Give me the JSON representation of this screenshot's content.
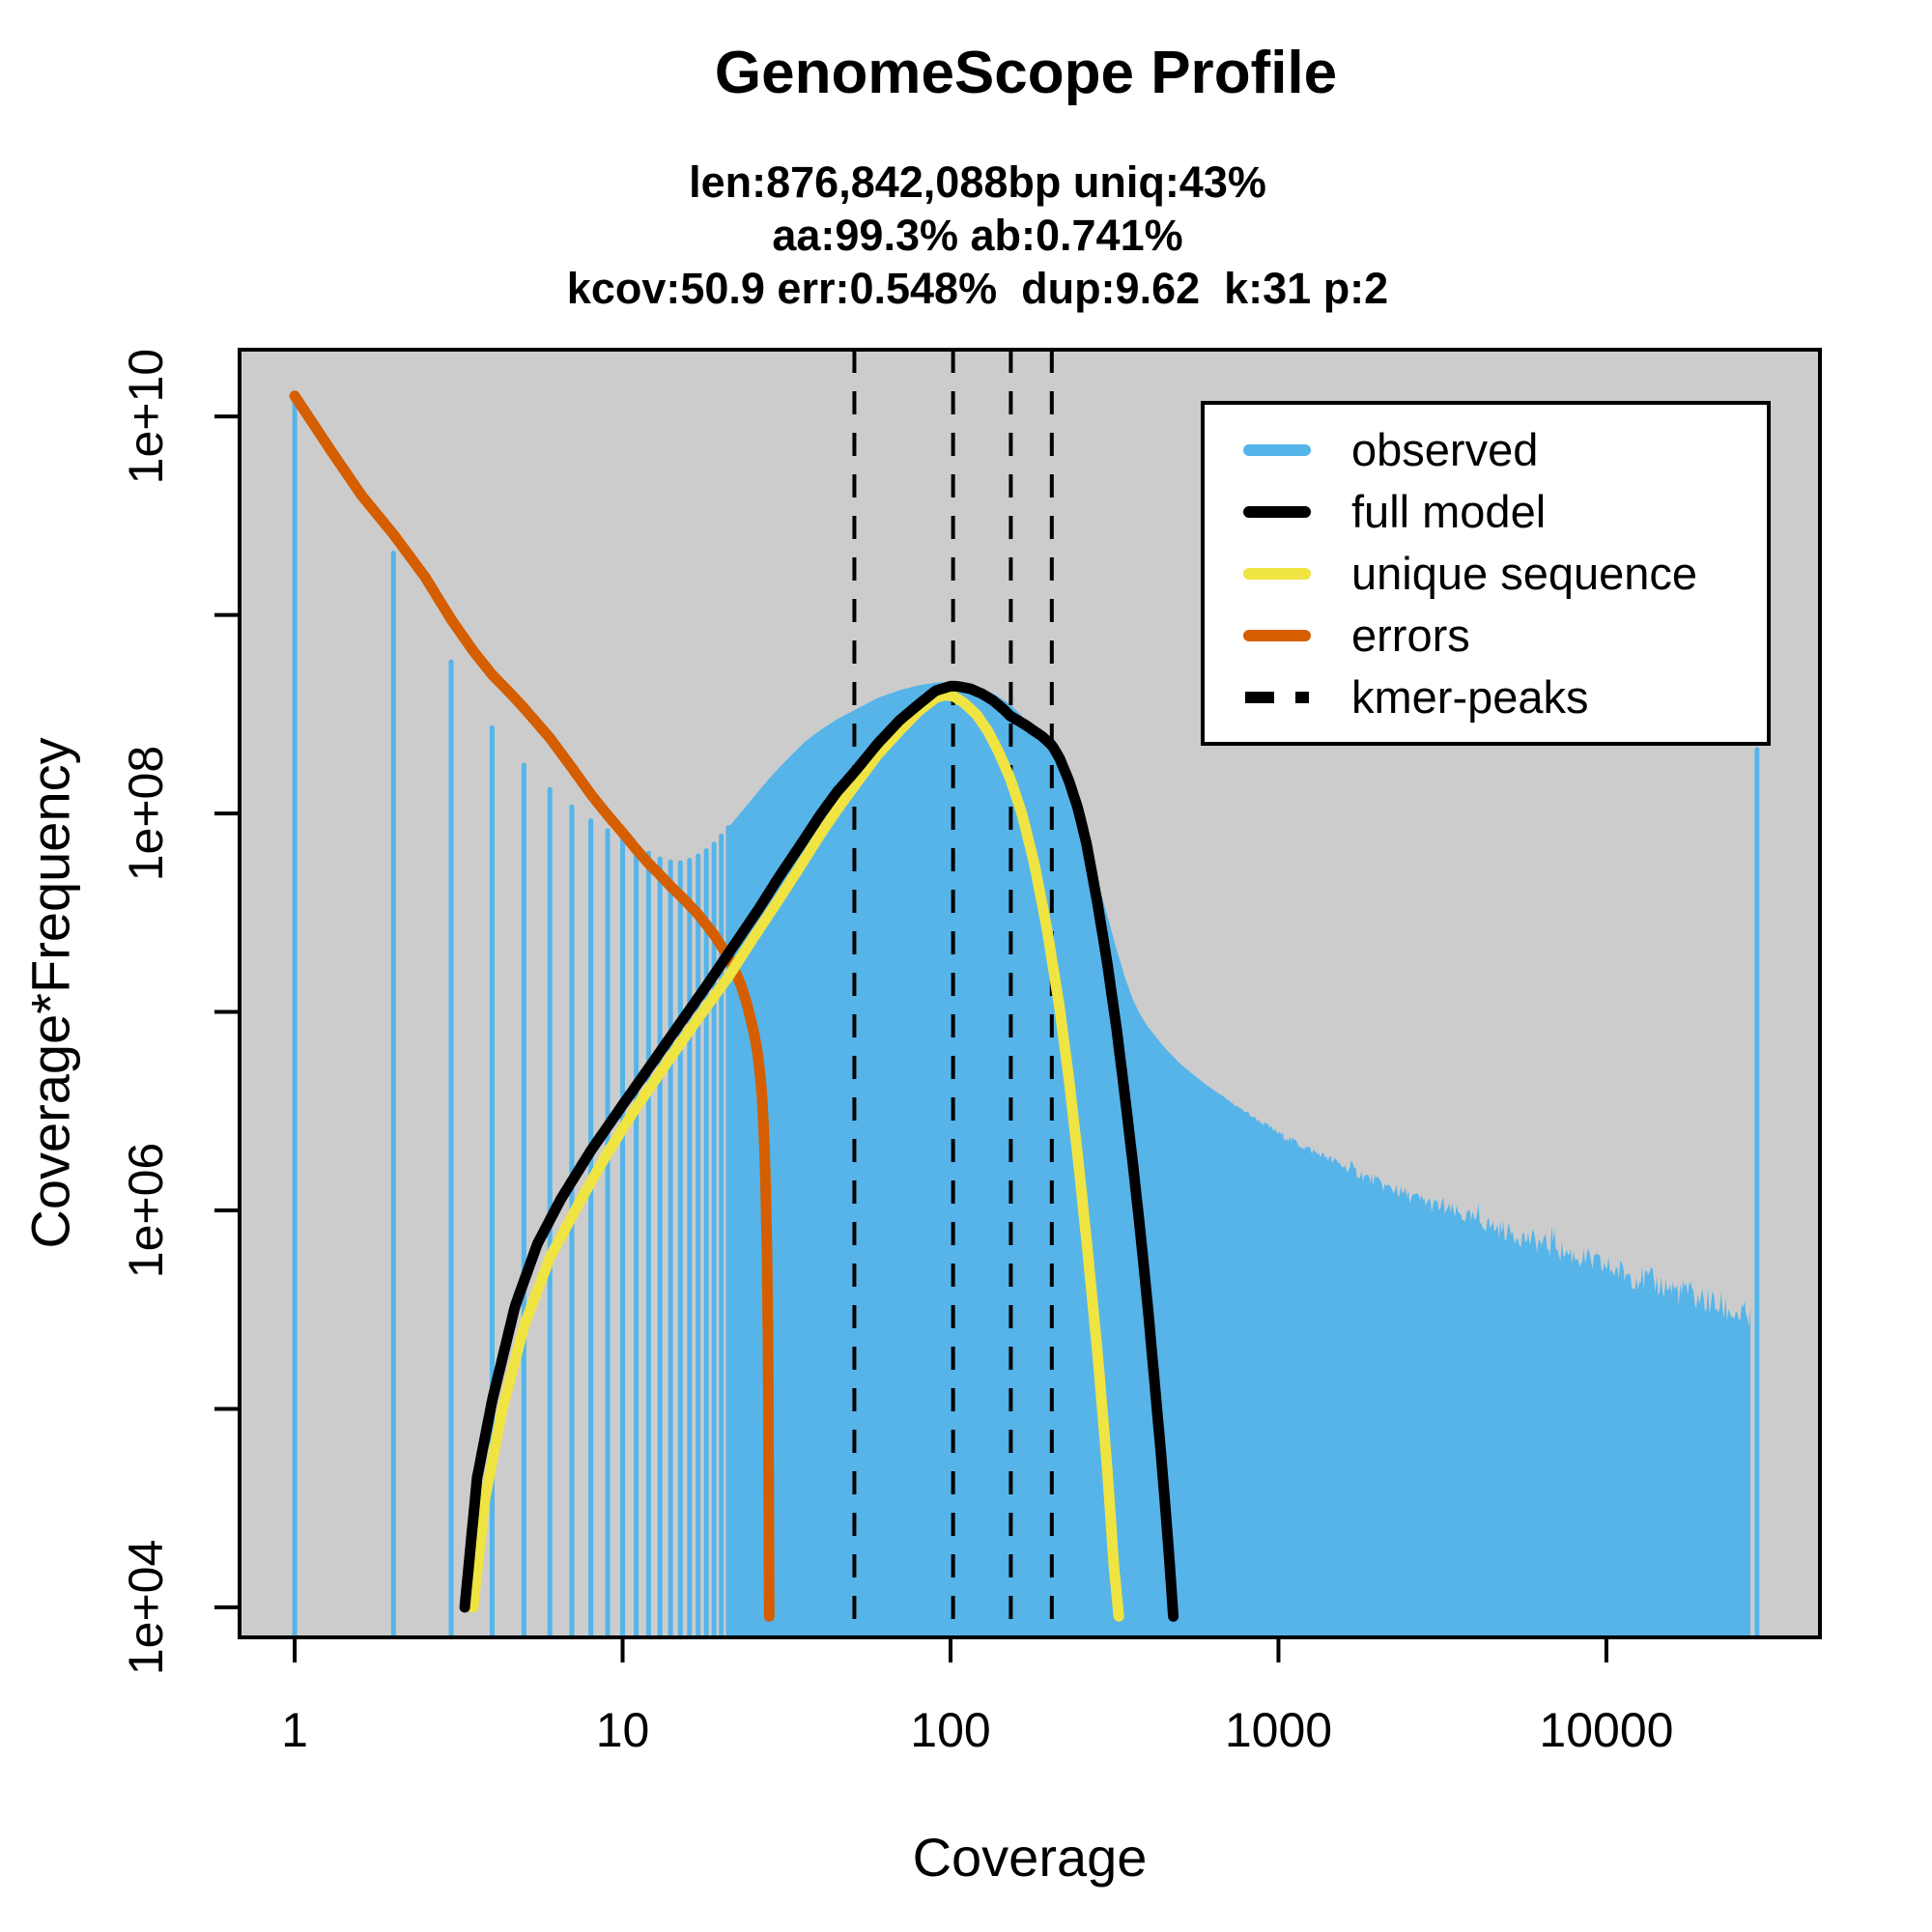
{
  "title": "GenomeScope Profile",
  "subtitle_lines": [
    "len:876,842,088bp uniq:43%",
    "aa:99.3% ab:0.741%",
    "kcov:50.9 err:0.548%  dup:9.62  k:31 p:2"
  ],
  "axes": {
    "x": {
      "label": "Coverage",
      "scale": "log10",
      "ticks": [
        {
          "value": 1,
          "label": "1"
        },
        {
          "value": 10,
          "label": "10"
        },
        {
          "value": 100,
          "label": "100"
        },
        {
          "value": 1000,
          "label": "1000"
        },
        {
          "value": 10000,
          "label": "10000"
        }
      ],
      "range": [
        0.679,
        44800
      ]
    },
    "y": {
      "label": "Coverage*Frequency",
      "scale": "log10",
      "ticks": [
        {
          "value": 10000.0,
          "label": "1e+04"
        },
        {
          "value": 100000.0,
          "label": ""
        },
        {
          "value": 1000000.0,
          "label": "1e+06"
        },
        {
          "value": 10000000.0,
          "label": ""
        },
        {
          "value": 100000000.0,
          "label": "1e+08"
        },
        {
          "value": 1000000000.0,
          "label": ""
        },
        {
          "value": 10000000000.0,
          "label": "1e+10"
        }
      ],
      "range": [
        7060,
        21700000000
      ]
    }
  },
  "legend": {
    "items": [
      {
        "id": "observed",
        "label": "observed",
        "color": "#56B4E9",
        "style": "solid"
      },
      {
        "id": "full-model",
        "label": "full model",
        "color": "#000000",
        "style": "solid"
      },
      {
        "id": "unique-sequence",
        "label": "unique sequence",
        "color": "#F0E442",
        "style": "solid"
      },
      {
        "id": "errors",
        "label": "errors",
        "color": "#D55E00",
        "style": "solid"
      },
      {
        "id": "kmer-peaks",
        "label": "kmer-peaks",
        "color": "#000000",
        "style": "dashed"
      }
    ]
  },
  "colors": {
    "observed": "#56B4E9",
    "full_model": "#000000",
    "unique_sequence": "#F0E442",
    "errors": "#D55E00",
    "kmer_peaks": "#000000",
    "panel_background": "#CCCCCC",
    "figure_background": "#FFFFFF"
  },
  "chart_data": {
    "type": "area",
    "subtype": "kmer-spectrum-histogram-with-model-lines",
    "title": "GenomeScope Profile",
    "xlabel": "Coverage",
    "ylabel": "Coverage*Frequency",
    "xlim": [
      0.679,
      44800
    ],
    "ylim": [
      7060,
      21700000000
    ],
    "grid": false,
    "legend_position": "top-right",
    "kmer_peaks": [
      50.9,
      101.8,
      152.7,
      203.6
    ],
    "observed_discrete_bars_max_coverage": 21,
    "observed_max_coverage_spike": {
      "coverage": 28800,
      "value": 210000000.0
    },
    "series": [
      {
        "name": "observed",
        "points": [
          [
            1,
            12500000000.0
          ],
          [
            2,
            2050000000.0
          ],
          [
            3,
            580000000.0
          ],
          [
            4,
            270000000.0
          ],
          [
            5,
            175000000.0
          ],
          [
            6,
            132000000.0
          ],
          [
            7,
            108000000.0
          ],
          [
            8,
            92000000.0
          ],
          [
            9,
            82000000.0
          ],
          [
            10,
            74000000.0
          ],
          [
            11,
            68000000.0
          ],
          [
            12,
            63000000.0
          ],
          [
            13,
            59000000.0
          ],
          [
            14,
            57000000.0
          ],
          [
            15,
            56500000.0
          ],
          [
            16,
            58000000.0
          ],
          [
            17,
            61000000.0
          ],
          [
            18,
            65000000.0
          ],
          [
            19,
            70000000.0
          ],
          [
            20,
            77000000.0
          ],
          [
            22,
            93000000.0
          ],
          [
            25,
            120000000.0
          ],
          [
            28,
            150000000.0
          ],
          [
            32,
            190000000.0
          ],
          [
            36,
            230000000.0
          ],
          [
            40,
            262000000.0
          ],
          [
            45,
            298000000.0
          ],
          [
            51,
            332000000.0
          ],
          [
            60,
            382000000.0
          ],
          [
            70,
            418000000.0
          ],
          [
            80,
            442000000.0
          ],
          [
            90,
            456000000.0
          ],
          [
            100,
            460000000.0
          ],
          [
            110,
            452000000.0
          ],
          [
            120,
            436000000.0
          ],
          [
            135,
            402000000.0
          ],
          [
            152,
            355000000.0
          ],
          [
            170,
            295000000.0
          ],
          [
            185,
            250000000.0
          ],
          [
            204,
            198000000.0
          ],
          [
            220,
            155000000.0
          ],
          [
            240,
            108000000.0
          ],
          [
            260,
            72000000.0
          ],
          [
            280,
            46000000.0
          ],
          [
            300,
            31000000.0
          ],
          [
            320,
            21000000.0
          ],
          [
            340,
            15000000.0
          ],
          [
            360,
            11500000.0
          ],
          [
            380,
            9600000.0
          ],
          [
            400,
            8400000.0
          ],
          [
            450,
            6600000.0
          ],
          [
            500,
            5500000.0
          ],
          [
            600,
            4300000.0
          ],
          [
            700,
            3600000.0
          ],
          [
            800,
            3100000.0
          ],
          [
            1000,
            2450000.0
          ],
          [
            1300,
            1950000.0
          ],
          [
            1700,
            1580000.0
          ],
          [
            2200,
            1280000.0
          ],
          [
            3000,
            1060000.0
          ],
          [
            4000,
            890000.0
          ],
          [
            5000,
            780000.0
          ],
          [
            7000,
            640000.0
          ],
          [
            9000,
            550000.0
          ],
          [
            12000,
            470000.0
          ],
          [
            16000,
            400000.0
          ],
          [
            20000,
            350000.0
          ],
          [
            24000,
            310000.0
          ],
          [
            28000,
            280000.0
          ]
        ]
      },
      {
        "name": "full model",
        "points": [
          [
            3.3,
            10000.0
          ],
          [
            3.6,
            45000.0
          ],
          [
            4,
            110000.0
          ],
          [
            4.7,
            330000.0
          ],
          [
            5.5,
            680000.0
          ],
          [
            6.5,
            1150000.0
          ],
          [
            8,
            2000000.0
          ],
          [
            10,
            3400000.0
          ],
          [
            12,
            5200000.0
          ],
          [
            15,
            8800000.0
          ],
          [
            18,
            13500000.0
          ],
          [
            22,
            22000000.0
          ],
          [
            26,
            33000000.0
          ],
          [
            30,
            48000000.0
          ],
          [
            35,
            70000000.0
          ],
          [
            40,
            98000000.0
          ],
          [
            45,
            128000000.0
          ],
          [
            51,
            162000000.0
          ],
          [
            60,
            225000000.0
          ],
          [
            70,
            295000000.0
          ],
          [
            80,
            355000000.0
          ],
          [
            90,
            415000000.0
          ],
          [
            100,
            438000000.0
          ],
          [
            105,
            437000000.0
          ],
          [
            115,
            425000000.0
          ],
          [
            125,
            400000000.0
          ],
          [
            135,
            370000000.0
          ],
          [
            145,
            335000000.0
          ],
          [
            152,
            310000000.0
          ],
          [
            160,
            295000000.0
          ],
          [
            170,
            278000000.0
          ],
          [
            180,
            260000000.0
          ],
          [
            190,
            245000000.0
          ],
          [
            204,
            220000000.0
          ],
          [
            215,
            190000000.0
          ],
          [
            230,
            145000000.0
          ],
          [
            245,
            105000000.0
          ],
          [
            260,
            70000000.0
          ],
          [
            280,
            36000000.0
          ],
          [
            300,
            18000000.0
          ],
          [
            320,
            8500000.0
          ],
          [
            340,
            3800000.0
          ],
          [
            360,
            1700000.0
          ],
          [
            380,
            750000.0
          ],
          [
            400,
            320000.0
          ],
          [
            420,
            130000.0
          ],
          [
            440,
            55000.0
          ],
          [
            460,
            22000.0
          ],
          [
            478,
            9000.0
          ]
        ]
      },
      {
        "name": "unique sequence",
        "points": [
          [
            3.5,
            10000.0
          ],
          [
            3.8,
            35000.0
          ],
          [
            4.3,
            100000.0
          ],
          [
            5,
            260000.0
          ],
          [
            6,
            580000.0
          ],
          [
            7.5,
            1150000.0
          ],
          [
            9,
            1950000.0
          ],
          [
            11,
            3300000.0
          ],
          [
            14,
            5900000.0
          ],
          [
            17,
            9300000.0
          ],
          [
            21,
            15000000.0
          ],
          [
            25,
            23500000.0
          ],
          [
            30,
            37000000.0
          ],
          [
            35,
            55000000.0
          ],
          [
            40,
            78000000.0
          ],
          [
            45,
            104000000.0
          ],
          [
            51,
            138000000.0
          ],
          [
            60,
            198000000.0
          ],
          [
            70,
            262000000.0
          ],
          [
            80,
            328000000.0
          ],
          [
            90,
            382000000.0
          ],
          [
            96,
            394000000.0
          ],
          [
            102,
            390000000.0
          ],
          [
            110,
            360000000.0
          ],
          [
            120,
            315000000.0
          ],
          [
            130,
            260000000.0
          ],
          [
            140,
            205000000.0
          ],
          [
            152,
            150000000.0
          ],
          [
            165,
            100000000.0
          ],
          [
            180,
            56000000.0
          ],
          [
            197,
            26000000.0
          ],
          [
            215,
            10500000.0
          ],
          [
            230,
            4500000.0
          ],
          [
            245,
            1800000.0
          ],
          [
            260,
            700000.0
          ],
          [
            280,
            200000.0
          ],
          [
            300,
            52000.0
          ],
          [
            315,
            16000.0
          ],
          [
            326,
            9000.0
          ]
        ]
      },
      {
        "name": "errors",
        "points": [
          [
            1,
            12700000000.0
          ],
          [
            1.3,
            6600000000.0
          ],
          [
            1.6,
            4000000000.0
          ],
          [
            2,
            2550000000.0
          ],
          [
            2.5,
            1550000000.0
          ],
          [
            3,
            950000000.0
          ],
          [
            3.5,
            660000000.0
          ],
          [
            4,
            500000000.0
          ],
          [
            4.5,
            410000000.0
          ],
          [
            5,
            340000000.0
          ],
          [
            6,
            240000000.0
          ],
          [
            7,
            170000000.0
          ],
          [
            8,
            125000000.0
          ],
          [
            9,
            98000000.0
          ],
          [
            10,
            80000000.0
          ],
          [
            11,
            66000000.0
          ],
          [
            12,
            56000000.0
          ],
          [
            13,
            49000000.0
          ],
          [
            14,
            43000000.0
          ],
          [
            15,
            38500000.0
          ],
          [
            16,
            34500000.0
          ],
          [
            17,
            31000000.0
          ],
          [
            18,
            27500000.0
          ],
          [
            19,
            24500000.0
          ],
          [
            20,
            21500000.0
          ],
          [
            21,
            19000000.0
          ],
          [
            22,
            16200000.0
          ],
          [
            23,
            13500000.0
          ],
          [
            24,
            10800000.0
          ],
          [
            25,
            8200000.0
          ],
          [
            25.8,
            6200000.0
          ],
          [
            26.5,
            4200000.0
          ],
          [
            27,
            2400000.0
          ],
          [
            27.4,
            1100000.0
          ],
          [
            27.7,
            350000.0
          ],
          [
            27.9,
            80000.0
          ],
          [
            28,
            9000.0
          ]
        ]
      }
    ]
  }
}
